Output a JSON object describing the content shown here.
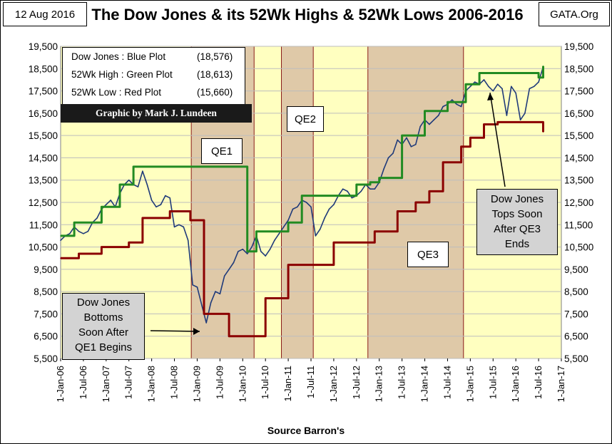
{
  "header": {
    "date": "12 Aug 2016",
    "title": "The Dow Jones & its 52Wk Highs & 52Wk Lows 2006-2016",
    "site": "GATA.Org"
  },
  "legend": {
    "rows": [
      {
        "label": "Dow Jones : Blue Plot",
        "value": "(18,576)"
      },
      {
        "label": "52Wk High : Green Plot",
        "value": "(18,613)"
      },
      {
        "label": "52Wk Low  : Red Plot",
        "value": "(15,660)"
      }
    ]
  },
  "credit": "Graphic by Mark J. Lundeen",
  "annotations": {
    "qe1": "QE1",
    "qe2": "QE2",
    "qe3": "QE3",
    "bottom_note": [
      "Dow Jones",
      "Bottoms",
      "Soon After",
      "QE1 Begins"
    ],
    "top_note": [
      "Dow Jones",
      "Tops Soon",
      "After QE3",
      "Ends"
    ]
  },
  "source": "Source Barron's",
  "colors": {
    "plot_bg": "#ffffc0",
    "qe_fill": "#dfc9a8",
    "qe_border": "#8b1a1a",
    "dow": "#1f3a7a",
    "high": "#228b22",
    "low": "#8b0000"
  },
  "chart_data": {
    "type": "line",
    "title": "The Dow Jones & its 52Wk Highs & 52Wk Lows 2006-2016",
    "xlabel": "Source Barron's",
    "ylabel": "",
    "xlim": [
      2006.0,
      2017.0
    ],
    "ylim": [
      5500,
      19500
    ],
    "y_ticks": [
      "5,500",
      "6,500",
      "7,500",
      "8,500",
      "9,500",
      "10,500",
      "11,500",
      "12,500",
      "13,500",
      "14,500",
      "15,500",
      "16,500",
      "17,500",
      "18,500",
      "19,500"
    ],
    "x_ticks": [
      "1-Jan-06",
      "1-Jul-06",
      "1-Jan-07",
      "1-Jul-07",
      "1-Jan-08",
      "1-Jul-08",
      "1-Jan-09",
      "1-Jul-09",
      "1-Jan-10",
      "1-Jul-10",
      "1-Jan-11",
      "1-Jul-11",
      "1-Jan-12",
      "1-Jul-12",
      "1-Jan-13",
      "1-Jul-13",
      "1-Jan-14",
      "1-Jul-14",
      "1-Jan-15",
      "1-Jul-15",
      "1-Jan-16",
      "1-Jul-16",
      "1-Jan-17"
    ],
    "shaded_periods": [
      {
        "name": "QE1",
        "start": 2008.87,
        "end": 2010.25
      },
      {
        "name": "QE2",
        "start": 2010.85,
        "end": 2011.55
      },
      {
        "name": "QE3",
        "start": 2012.75,
        "end": 2014.85
      }
    ],
    "series": [
      {
        "name": "Dow Jones",
        "color": "#1f3a7a",
        "x": [
          2006.0,
          2006.1,
          2006.2,
          2006.3,
          2006.4,
          2006.5,
          2006.6,
          2006.7,
          2006.8,
          2006.9,
          2007.0,
          2007.1,
          2007.2,
          2007.3,
          2007.4,
          2007.5,
          2007.6,
          2007.7,
          2007.8,
          2007.9,
          2008.0,
          2008.1,
          2008.2,
          2008.3,
          2008.4,
          2008.5,
          2008.6,
          2008.7,
          2008.8,
          2008.9,
          2009.0,
          2009.1,
          2009.2,
          2009.3,
          2009.4,
          2009.5,
          2009.6,
          2009.7,
          2009.8,
          2009.9,
          2010.0,
          2010.1,
          2010.2,
          2010.3,
          2010.4,
          2010.5,
          2010.6,
          2010.7,
          2010.8,
          2010.9,
          2011.0,
          2011.1,
          2011.2,
          2011.3,
          2011.4,
          2011.5,
          2011.6,
          2011.7,
          2011.8,
          2011.9,
          2012.0,
          2012.1,
          2012.2,
          2012.3,
          2012.4,
          2012.5,
          2012.6,
          2012.7,
          2012.8,
          2012.9,
          2013.0,
          2013.1,
          2013.2,
          2013.3,
          2013.4,
          2013.5,
          2013.6,
          2013.7,
          2013.8,
          2013.9,
          2014.0,
          2014.1,
          2014.2,
          2014.3,
          2014.4,
          2014.5,
          2014.6,
          2014.7,
          2014.8,
          2014.9,
          2015.0,
          2015.1,
          2015.2,
          2015.3,
          2015.4,
          2015.5,
          2015.6,
          2015.7,
          2015.8,
          2015.9,
          2016.0,
          2016.1,
          2016.2,
          2016.3,
          2016.4,
          2016.5,
          2016.6
        ],
        "values": [
          10800,
          11000,
          11100,
          11400,
          11200,
          11100,
          11200,
          11600,
          11800,
          12200,
          12400,
          12600,
          12300,
          12900,
          13300,
          13500,
          13300,
          13200,
          13900,
          13300,
          12600,
          12300,
          12400,
          12800,
          12700,
          11400,
          11500,
          11400,
          10800,
          8800,
          8700,
          7900,
          7100,
          8000,
          8500,
          8400,
          9200,
          9500,
          9800,
          10300,
          10400,
          10200,
          10500,
          11000,
          10300,
          10100,
          10400,
          10800,
          11100,
          11400,
          11700,
          12200,
          12300,
          12600,
          12500,
          12300,
          11000,
          11300,
          11800,
          12200,
          12400,
          12800,
          13100,
          13000,
          12700,
          12800,
          13000,
          13300,
          13100,
          13100,
          13400,
          14000,
          14500,
          14700,
          15300,
          15100,
          15400,
          15000,
          15100,
          15900,
          16200,
          16000,
          16200,
          16400,
          16800,
          16900,
          17100,
          16900,
          16800,
          17500,
          17700,
          17900,
          17800,
          18000,
          17700,
          17500,
          17800,
          17600,
          16400,
          17700,
          17400,
          16200,
          16500,
          17600,
          17700,
          17900,
          18576
        ]
      },
      {
        "name": "52Wk High",
        "color": "#228b22",
        "x": [
          2006.0,
          2006.3,
          2006.9,
          2007.3,
          2007.6,
          2008.9,
          2010.1,
          2010.3,
          2011.0,
          2011.3,
          2012.2,
          2012.5,
          2012.8,
          2013.0,
          2013.5,
          2014.0,
          2014.5,
          2014.9,
          2015.2,
          2016.3,
          2016.5,
          2016.6
        ],
        "values": [
          11000,
          11600,
          12300,
          13300,
          14100,
          14100,
          10300,
          11200,
          11600,
          12800,
          12800,
          13300,
          13400,
          13600,
          15500,
          16600,
          17000,
          17800,
          18300,
          18300,
          18100,
          18613
        ]
      },
      {
        "name": "52Wk Low",
        "color": "#8b0000",
        "x": [
          2006.0,
          2006.4,
          2006.9,
          2007.5,
          2007.8,
          2008.4,
          2008.85,
          2009.15,
          2009.7,
          2010.1,
          2010.5,
          2011.0,
          2011.5,
          2012.0,
          2012.5,
          2012.9,
          2013.4,
          2013.8,
          2014.1,
          2014.4,
          2014.8,
          2015.0,
          2015.3,
          2015.6,
          2016.6
        ],
        "values": [
          10000,
          10200,
          10500,
          10700,
          11800,
          12100,
          11700,
          7500,
          6500,
          6500,
          8200,
          9700,
          9700,
          10700,
          10700,
          11200,
          12100,
          12500,
          13000,
          14300,
          15000,
          15400,
          16000,
          16100,
          15660
        ]
      }
    ]
  }
}
